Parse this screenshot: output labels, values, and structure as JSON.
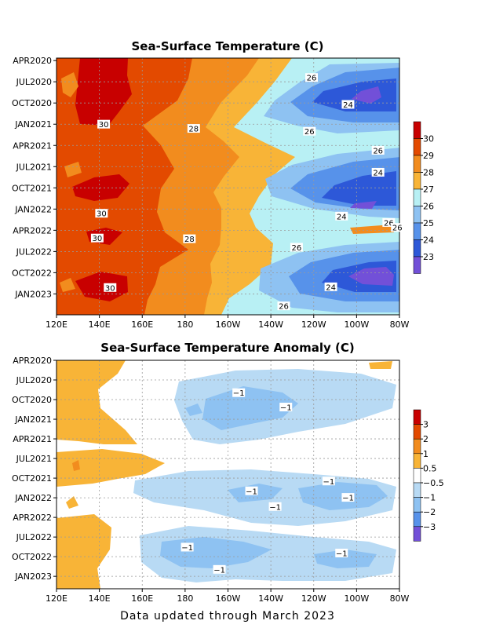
{
  "footer_text": "Data updated through March 2023",
  "chart_data": [
    {
      "type": "heatmap",
      "title": "Sea-Surface Temperature (C)",
      "x_ticks": [
        "120E",
        "140E",
        "160E",
        "180",
        "160W",
        "140W",
        "120W",
        "100W",
        "80W"
      ],
      "y_ticks": [
        "APR2020",
        "JUL2020",
        "OCT2020",
        "JAN2021",
        "APR2021",
        "JUL2021",
        "OCT2021",
        "JAN2022",
        "APR2022",
        "JUL2022",
        "OCT2022",
        "JAN2023"
      ],
      "legend_labels": [
        "30",
        "29",
        "28",
        "27",
        "26",
        "25",
        "24",
        "23"
      ],
      "legend_colors": [
        "#c80000",
        "#e34a00",
        "#f28c1e",
        "#f8b437",
        "#b8f0f4",
        "#8ec2f2",
        "#5792ea",
        "#2d58d8",
        "#7250d8"
      ],
      "contour_labels": [
        {
          "text": "26",
          "lon": 239,
          "t": 2.8
        },
        {
          "text": "24",
          "lon": 256,
          "t": 6.6
        },
        {
          "text": "30",
          "lon": 142,
          "t": 9.4
        },
        {
          "text": "28",
          "lon": 184,
          "t": 10.0
        },
        {
          "text": "26",
          "lon": 238,
          "t": 10.4
        },
        {
          "text": "26",
          "lon": 270,
          "t": 13.1
        },
        {
          "text": "24",
          "lon": 270,
          "t": 16.2
        },
        {
          "text": "30",
          "lon": 141,
          "t": 22.0
        },
        {
          "text": "24",
          "lon": 253,
          "t": 22.4
        },
        {
          "text": "26",
          "lon": 275,
          "t": 23.3
        },
        {
          "text": "26",
          "lon": 279,
          "t": 24.0
        },
        {
          "text": "30",
          "lon": 139,
          "t": 25.5
        },
        {
          "text": "28",
          "lon": 182,
          "t": 25.6
        },
        {
          "text": "26",
          "lon": 232,
          "t": 26.8
        },
        {
          "text": "24",
          "lon": 248,
          "t": 32.4
        },
        {
          "text": "30",
          "lon": 145,
          "t": 32.5
        },
        {
          "text": "26",
          "lon": 226,
          "t": 35.1
        }
      ]
    },
    {
      "type": "heatmap",
      "title": "Sea-Surface Temperature Anomaly (C)",
      "x_ticks": [
        "120E",
        "140E",
        "160E",
        "180",
        "160W",
        "140W",
        "120W",
        "100W",
        "80W"
      ],
      "y_ticks": [
        "APR2020",
        "JUL2020",
        "OCT2020",
        "JAN2021",
        "APR2021",
        "JUL2021",
        "OCT2021",
        "JAN2022",
        "APR2022",
        "JUL2022",
        "OCT2022",
        "JAN2023"
      ],
      "legend_labels": [
        "3",
        "2",
        "1",
        "0.5",
        "−0.5",
        "−1",
        "−2",
        "−3"
      ],
      "legend_colors": [
        "#c80000",
        "#e34a00",
        "#f28c1e",
        "#f8b437",
        "#ffffff",
        "#b8daf4",
        "#8ec2f2",
        "#5792ea",
        "#7250d8"
      ],
      "contour_labels": [
        {
          "text": "−1",
          "lon": 205,
          "t": 5.0
        },
        {
          "text": "−1",
          "lon": 227,
          "t": 7.2
        },
        {
          "text": "−1",
          "lon": 247,
          "t": 18.5
        },
        {
          "text": "−1",
          "lon": 211,
          "t": 20.0
        },
        {
          "text": "−1",
          "lon": 256,
          "t": 21.0
        },
        {
          "text": "−1",
          "lon": 222,
          "t": 22.4
        },
        {
          "text": "−1",
          "lon": 181,
          "t": 28.6
        },
        {
          "text": "−1",
          "lon": 253,
          "t": 29.5
        },
        {
          "text": "−1",
          "lon": 196,
          "t": 32.0
        }
      ]
    }
  ]
}
